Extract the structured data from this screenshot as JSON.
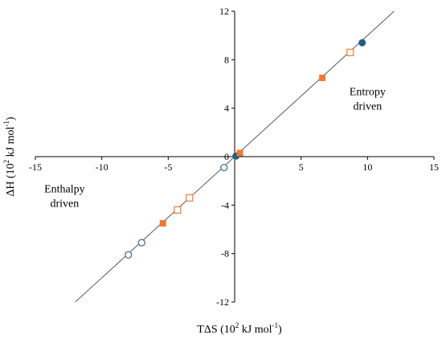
{
  "chart_data": {
    "type": "scatter",
    "xlabel": "TΔS (10",
    "xlabel_sup": "2",
    "xlabel_rest": " kJ mol",
    "xlabel_sup2": "-1",
    "xlabel_end": ")",
    "ylabel": "ΔH (10",
    "ylabel_sup": "2",
    "ylabel_rest": " kJ mol",
    "ylabel_sup2": "-1",
    "ylabel_end": ")",
    "xlim": [
      -15,
      15
    ],
    "ylim": [
      -12,
      12
    ],
    "x_ticks": [
      "-15",
      "-10",
      "-5",
      "0",
      "5",
      "10",
      "15"
    ],
    "y_ticks": [
      "-12",
      "-8",
      "-4",
      "0",
      "4",
      "8",
      "12"
    ],
    "grid": false,
    "annotations": [
      {
        "lines": [
          "Entropy",
          "driven"
        ],
        "x": 10,
        "y": 4
      },
      {
        "lines": [
          "Enthalpy",
          "driven"
        ],
        "x": -12.8,
        "y": -4
      }
    ],
    "reference_line": {
      "x": [
        -12,
        12
      ],
      "y": [
        -12,
        12
      ],
      "color": "#595959"
    },
    "series": [
      {
        "marker": "filled-circle",
        "color": "#1f5f7f",
        "points": [
          [
            0.1,
            0.05
          ],
          [
            9.6,
            9.4
          ]
        ]
      },
      {
        "marker": "open-circle",
        "color": "#2e6f8e",
        "points": [
          [
            -8.0,
            -8.1
          ],
          [
            -7.0,
            -7.1
          ],
          [
            -0.8,
            -0.9
          ]
        ]
      },
      {
        "marker": "filled-square",
        "color": "#f07a30",
        "points": [
          [
            0.4,
            0.3
          ],
          [
            6.6,
            6.5
          ],
          [
            -5.4,
            -5.5
          ]
        ]
      },
      {
        "marker": "open-square",
        "color": "#f07a30",
        "points": [
          [
            8.7,
            8.6
          ],
          [
            -4.3,
            -4.4
          ],
          [
            -3.4,
            -3.4
          ]
        ]
      }
    ]
  }
}
